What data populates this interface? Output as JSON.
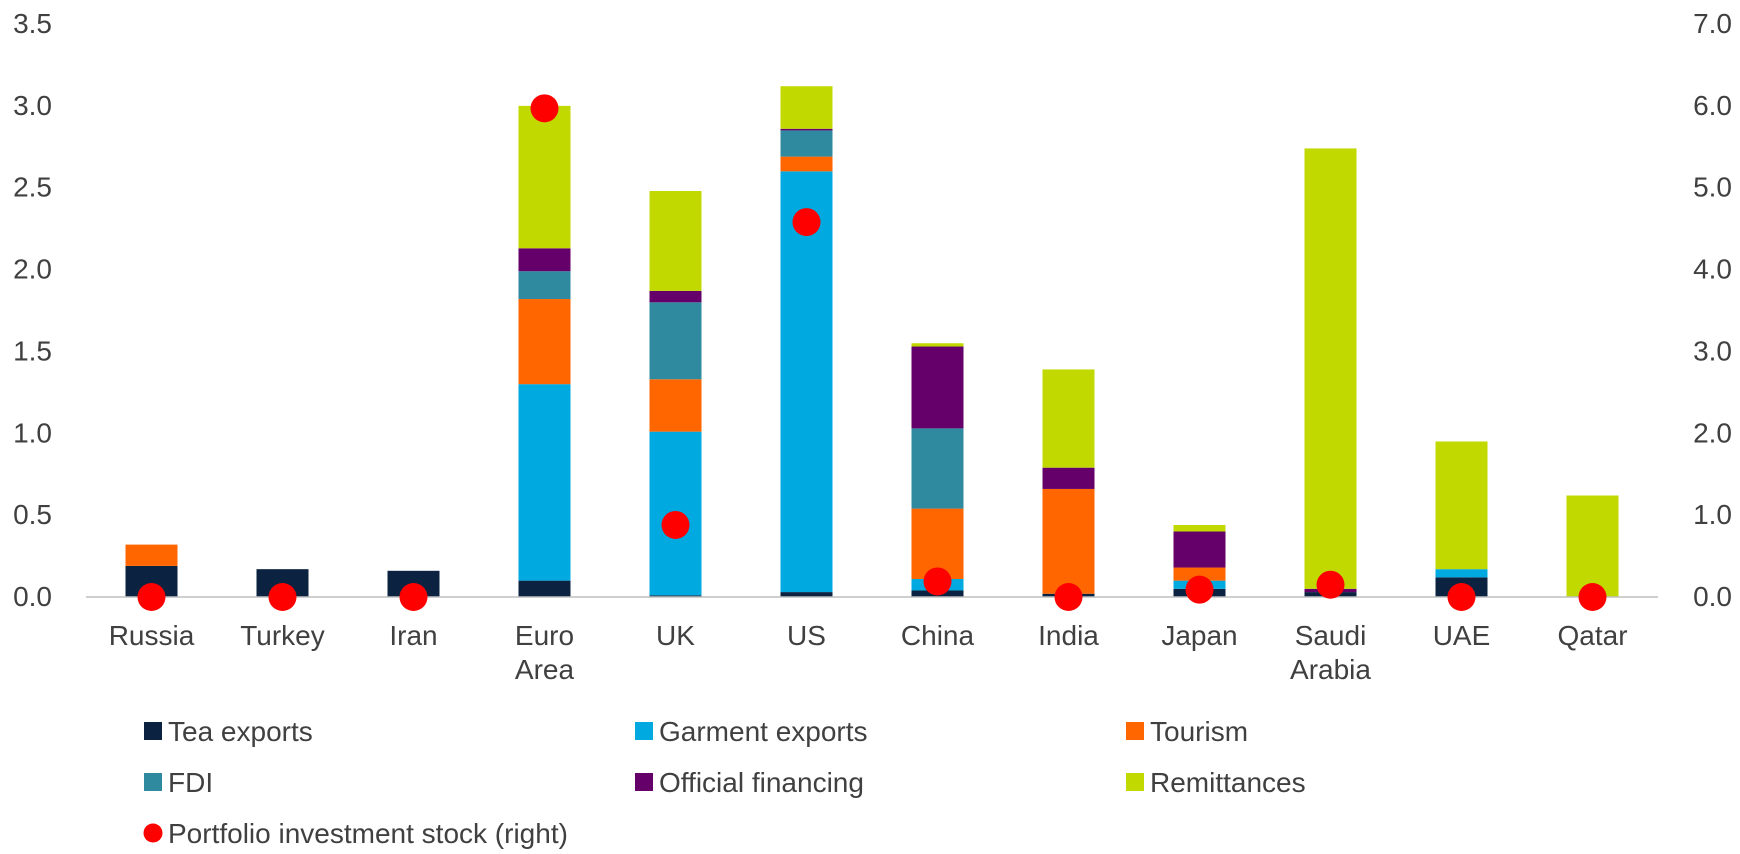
{
  "chart_data": {
    "type": "bar",
    "stacked": true,
    "categories": [
      [
        "Russia"
      ],
      [
        "Turkey"
      ],
      [
        "Iran"
      ],
      [
        "Euro",
        "Area"
      ],
      [
        "UK"
      ],
      [
        "US"
      ],
      [
        "China"
      ],
      [
        "India"
      ],
      [
        "Japan"
      ],
      [
        "Saudi",
        "Arabia"
      ],
      [
        "UAE"
      ],
      [
        "Qatar"
      ]
    ],
    "y_left": {
      "min": 0,
      "max": 3.5,
      "ticks": [
        "0.0",
        "0.5",
        "1.0",
        "1.5",
        "2.0",
        "2.5",
        "3.0",
        "3.5"
      ]
    },
    "y_right": {
      "min": 0,
      "max": 7.0,
      "ticks": [
        "0.0",
        "1.0",
        "2.0",
        "3.0",
        "4.0",
        "5.0",
        "6.0",
        "7.0"
      ]
    },
    "series": [
      {
        "name": "Tea exports",
        "color": "#0b2240",
        "values": [
          0.19,
          0.17,
          0.16,
          0.1,
          0.01,
          0.03,
          0.04,
          0.02,
          0.05,
          0.03,
          0.12,
          0.0
        ]
      },
      {
        "name": "Garment exports",
        "color": "#00a9e0",
        "values": [
          0.0,
          0.0,
          0.0,
          1.2,
          1.0,
          2.57,
          0.07,
          0.0,
          0.05,
          0.0,
          0.05,
          0.0
        ]
      },
      {
        "name": "Tourism",
        "color": "#ff6600",
        "values": [
          0.13,
          0.0,
          0.0,
          0.52,
          0.32,
          0.09,
          0.43,
          0.64,
          0.08,
          0.0,
          0.0,
          0.0
        ]
      },
      {
        "name": "FDI",
        "color": "#2f8aa0",
        "values": [
          0.0,
          0.0,
          0.0,
          0.17,
          0.47,
          0.16,
          0.49,
          0.0,
          0.0,
          0.0,
          0.0,
          0.0
        ]
      },
      {
        "name": "Official financing",
        "color": "#65006b",
        "values": [
          0.0,
          0.0,
          0.0,
          0.14,
          0.07,
          0.01,
          0.5,
          0.13,
          0.22,
          0.02,
          0.0,
          0.0
        ]
      },
      {
        "name": "Remittances",
        "color": "#c2d900",
        "values": [
          0.0,
          0.0,
          0.0,
          0.87,
          0.61,
          0.26,
          0.02,
          0.6,
          0.04,
          2.69,
          0.78,
          0.62
        ]
      }
    ],
    "line_series": {
      "name": "Portfolio investment stock (right)",
      "color": "#ff0000",
      "axis": "right",
      "values": [
        0.0,
        0.0,
        0.0,
        5.97,
        0.88,
        4.58,
        0.19,
        0.0,
        0.09,
        0.15,
        0.0,
        0.0
      ]
    },
    "legend_position": "bottom",
    "grid": false
  }
}
